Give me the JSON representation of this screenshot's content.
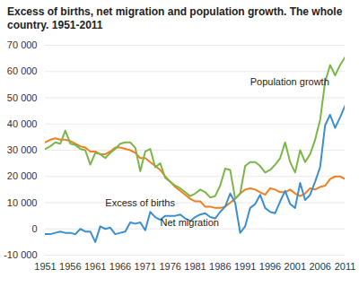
{
  "chart_data": {
    "type": "line",
    "title": "Excess of births, net migration and population growth. The whole country. 1951-2011",
    "x": [
      1951,
      1952,
      1953,
      1954,
      1955,
      1956,
      1957,
      1958,
      1959,
      1960,
      1961,
      1962,
      1963,
      1964,
      1965,
      1966,
      1967,
      1968,
      1969,
      1970,
      1971,
      1972,
      1973,
      1974,
      1975,
      1976,
      1977,
      1978,
      1979,
      1980,
      1981,
      1982,
      1983,
      1984,
      1985,
      1986,
      1987,
      1988,
      1989,
      1990,
      1991,
      1992,
      1993,
      1994,
      1995,
      1996,
      1997,
      1998,
      1999,
      2000,
      2001,
      2002,
      2003,
      2004,
      2005,
      2006,
      2007,
      2008,
      2009,
      2010,
      2011
    ],
    "series": [
      {
        "name": "Excess of births",
        "color": "#f07f1e",
        "values": [
          33000,
          34000,
          34500,
          34000,
          34000,
          33500,
          32500,
          31500,
          31000,
          29500,
          29500,
          28500,
          28500,
          29500,
          31000,
          31000,
          30500,
          30000,
          29000,
          27000,
          27000,
          25500,
          24000,
          22500,
          20000,
          18000,
          16000,
          14500,
          13000,
          11500,
          10500,
          10500,
          8500,
          8500,
          8000,
          8000,
          8500,
          10000,
          11500,
          13500,
          15000,
          15500,
          15000,
          14000,
          13000,
          15500,
          15000,
          14000,
          14000,
          15000,
          13500,
          12500,
          13500,
          15500,
          15000,
          16000,
          16500,
          19000,
          20000,
          20000,
          19000
        ]
      },
      {
        "name": "Net migration",
        "color": "#3d8fcc",
        "values": [
          -2000,
          -2000,
          -1500,
          -1000,
          -1500,
          -1500,
          -2000,
          0,
          -1000,
          -1000,
          -5000,
          1000,
          0,
          500,
          -2000,
          -1500,
          -1000,
          2500,
          2000,
          2500,
          -500,
          6500,
          4500,
          3500,
          5000,
          5000,
          5000,
          5500,
          4000,
          3000,
          4500,
          5500,
          6000,
          4500,
          4000,
          6500,
          8500,
          13500,
          10000,
          -1500,
          1000,
          8000,
          9500,
          13000,
          8000,
          6500,
          6000,
          10500,
          14500,
          9500,
          8000,
          17500,
          11000,
          13000,
          18000,
          23500,
          39500,
          43500,
          38500,
          42500,
          47000
        ]
      },
      {
        "name": "Population growth",
        "color": "#7ab648",
        "values": [
          30500,
          31500,
          33000,
          32500,
          37500,
          32500,
          32000,
          30500,
          30000,
          24500,
          29000,
          28500,
          27000,
          29000,
          30500,
          32500,
          33000,
          33000,
          31000,
          22000,
          29500,
          30500,
          23500,
          25000,
          19500,
          18000,
          16500,
          15500,
          14000,
          12500,
          13500,
          15000,
          14000,
          12000,
          12500,
          16500,
          23000,
          22500,
          11500,
          13500,
          24000,
          25500,
          25500,
          24000,
          21500,
          22500,
          24500,
          27000,
          33000,
          25500,
          21500,
          30000,
          25500,
          28500,
          34000,
          41500,
          56000,
          62500,
          58500,
          62500,
          65500
        ]
      }
    ],
    "annotations": [
      {
        "text": "Population growth",
        "x": 1992,
        "y": 56000
      },
      {
        "text": "Excess of births",
        "x": 1963,
        "y": 10000
      },
      {
        "text": "Net migration",
        "x": 1974,
        "y": 2400
      }
    ],
    "xlim": [
      1951,
      2011
    ],
    "xticks": [
      1951,
      1956,
      1961,
      1966,
      1971,
      1976,
      1981,
      1986,
      1991,
      1996,
      2001,
      2006,
      2011
    ],
    "ylim": [
      -10000,
      70000
    ],
    "yticks": [
      {
        "value": -10000,
        "label": "-10 000"
      },
      0,
      {
        "value": 10000,
        "label": "10 000"
      },
      {
        "value": 20000,
        "label": "20 000"
      },
      {
        "value": 30000,
        "label": "30 000"
      },
      {
        "value": 40000,
        "label": "40 000"
      },
      {
        "value": 50000,
        "label": "50 000"
      },
      {
        "value": 60000,
        "label": "60 000"
      },
      {
        "value": 70000,
        "label": "70 000"
      }
    ],
    "grid": true
  }
}
